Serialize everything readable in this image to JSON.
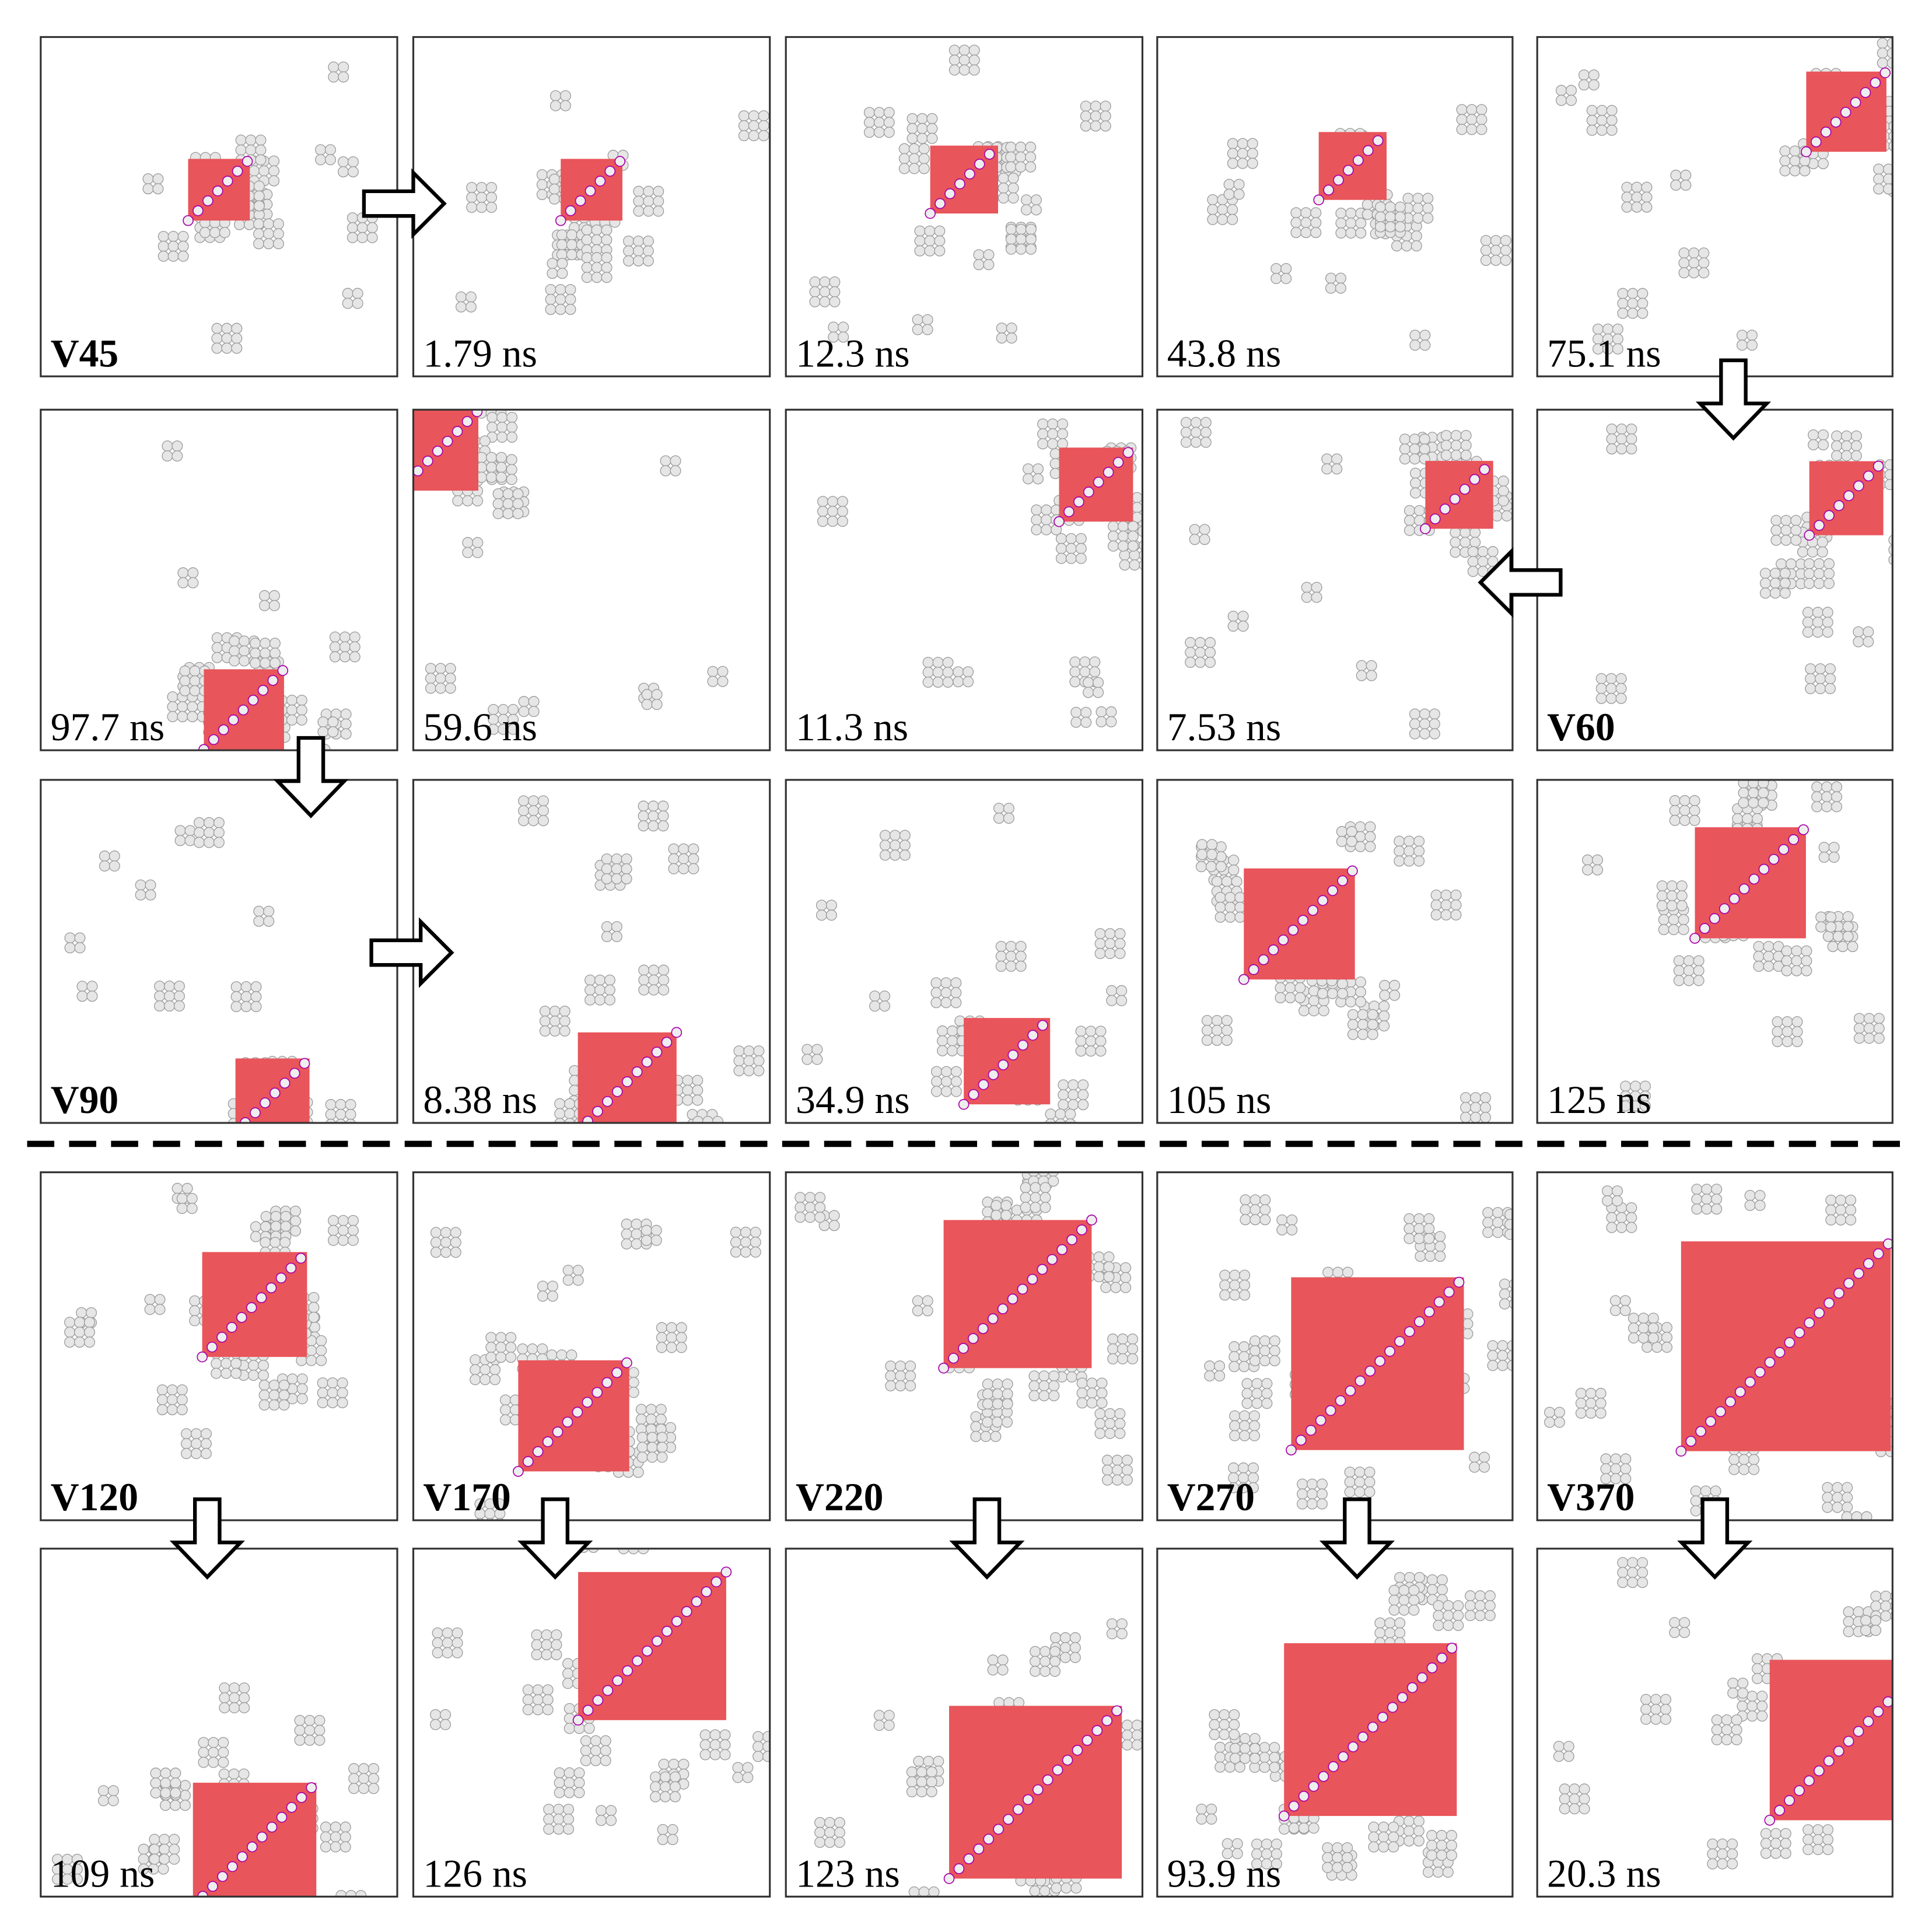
{
  "panels": [
    {
      "label": "V45"
    },
    {
      "label": "1.79 ns"
    },
    {
      "label": "12.3 ns"
    },
    {
      "label": "43.8 ns"
    },
    {
      "label": "75.1 ns"
    },
    {
      "label": "97.7 ns"
    },
    {
      "label": "59.6 ns"
    },
    {
      "label": "11.3 ns"
    },
    {
      "label": "7.53 ns"
    },
    {
      "label": "V60"
    },
    {
      "label": "V90"
    },
    {
      "label": "8.38 ns"
    },
    {
      "label": "34.9 ns"
    },
    {
      "label": "105 ns"
    },
    {
      "label": "125 ns"
    },
    {
      "label": "V120"
    },
    {
      "label": "V170"
    },
    {
      "label": "V220"
    },
    {
      "label": "V270"
    },
    {
      "label": "V370"
    },
    {
      "label": "109 ns"
    },
    {
      "label": "126 ns"
    },
    {
      "label": "123 ns"
    },
    {
      "label": "93.9 ns"
    },
    {
      "label": "20.3 ns"
    }
  ]
}
